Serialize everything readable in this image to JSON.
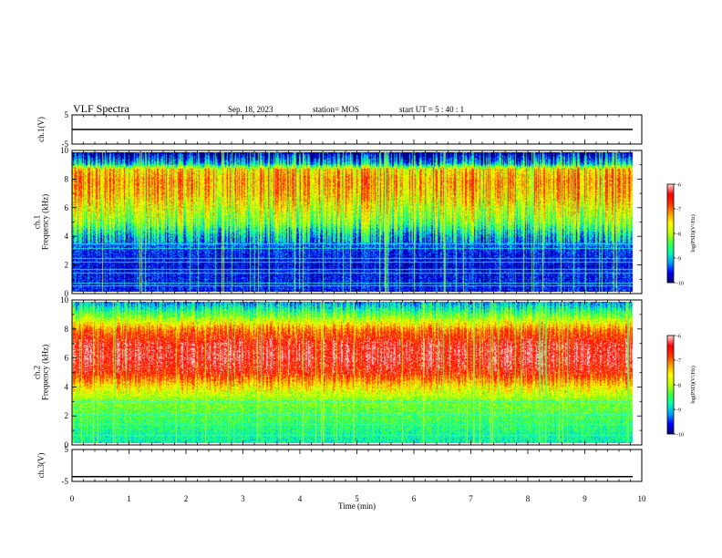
{
  "header": {
    "title": "VLF Spectra",
    "date": "Sep. 18, 2023",
    "station": "station= MOS",
    "start": "start UT =  5 : 40 : 1"
  },
  "colors": {
    "colormap": [
      "#000080",
      "#0000ff",
      "#00a0ff",
      "#00ffb0",
      "#40ff40",
      "#c0ff00",
      "#ffff00",
      "#ffa000",
      "#ff3000",
      "#ff0000",
      "#ffd0d0"
    ],
    "trace": "#000000"
  },
  "colorbars": [
    {
      "label": "log(PSD)(V²/Hz)",
      "ticks": [
        "-6",
        "-7",
        "-8",
        "-9",
        "-10"
      ],
      "range": [
        -10,
        -6
      ]
    },
    {
      "label": "log(PSD)(V²/Hz)",
      "ticks": [
        "-6",
        "-7",
        "-8",
        "-9",
        "-10"
      ],
      "range": [
        -10,
        -6
      ]
    }
  ],
  "chart_data": [
    {
      "type": "line",
      "panel": "ch.1 voltage",
      "ylabel": "ch.1(V)",
      "ylim": [
        -5,
        5
      ],
      "yticks": [
        "5",
        "-5"
      ],
      "x": [
        0,
        10
      ],
      "series": [
        {
          "values": [
            0,
            0
          ]
        }
      ]
    },
    {
      "type": "heatmap",
      "panel": "ch.1 spectrogram",
      "ylabel": "ch.1\nFrequency (kHz)",
      "ylim": [
        0,
        10
      ],
      "yticks": [
        "0",
        "2",
        "4",
        "6",
        "8",
        "10"
      ],
      "xlim": [
        0,
        9.85
      ],
      "zlabel": "log(PSD)(V²/Hz)",
      "zlim": [
        -10,
        -6
      ],
      "profile": [
        {
          "f": 0.0,
          "z": -9.6
        },
        {
          "f": 1.0,
          "z": -9.6
        },
        {
          "f": 2.0,
          "z": -9.7
        },
        {
          "f": 3.0,
          "z": -9.5
        },
        {
          "f": 4.0,
          "z": -9.0
        },
        {
          "f": 5.0,
          "z": -8.2
        },
        {
          "f": 6.0,
          "z": -7.8
        },
        {
          "f": 7.0,
          "z": -7.4
        },
        {
          "f": 8.0,
          "z": -7.2
        },
        {
          "f": 8.8,
          "z": -7.5
        },
        {
          "f": 9.2,
          "z": -9.0
        },
        {
          "f": 10.0,
          "z": -10.0
        }
      ]
    },
    {
      "type": "heatmap",
      "panel": "ch.2 spectrogram",
      "ylabel": "ch.2\nFrequency (kHz)",
      "ylim": [
        0,
        10
      ],
      "yticks": [
        "0",
        "2",
        "4",
        "6",
        "8",
        "10"
      ],
      "xlim": [
        0,
        9.85
      ],
      "zlabel": "log(PSD)(V²/Hz)",
      "zlim": [
        -10,
        -6
      ],
      "profile": [
        {
          "f": 0.0,
          "z": -8.8
        },
        {
          "f": 1.0,
          "z": -8.6
        },
        {
          "f": 2.0,
          "z": -8.4
        },
        {
          "f": 3.0,
          "z": -8.2
        },
        {
          "f": 4.0,
          "z": -7.5
        },
        {
          "f": 5.0,
          "z": -6.6
        },
        {
          "f": 6.0,
          "z": -6.3
        },
        {
          "f": 7.0,
          "z": -6.4
        },
        {
          "f": 8.0,
          "z": -7.0
        },
        {
          "f": 9.0,
          "z": -8.2
        },
        {
          "f": 10.0,
          "z": -9.2
        }
      ]
    },
    {
      "type": "line",
      "panel": "ch.3 voltage",
      "ylabel": "ch.3(V)",
      "ylim": [
        -5,
        5
      ],
      "yticks": [
        "5",
        "-5"
      ],
      "x": [
        0,
        10
      ],
      "series": [
        {
          "values": [
            -3.5,
            -3.5
          ]
        }
      ]
    }
  ],
  "xaxis": {
    "label": "Time (min)",
    "ticks": [
      "0",
      "1",
      "2",
      "3",
      "4",
      "5",
      "6",
      "7",
      "8",
      "9",
      "10"
    ],
    "range": [
      0,
      10
    ]
  }
}
